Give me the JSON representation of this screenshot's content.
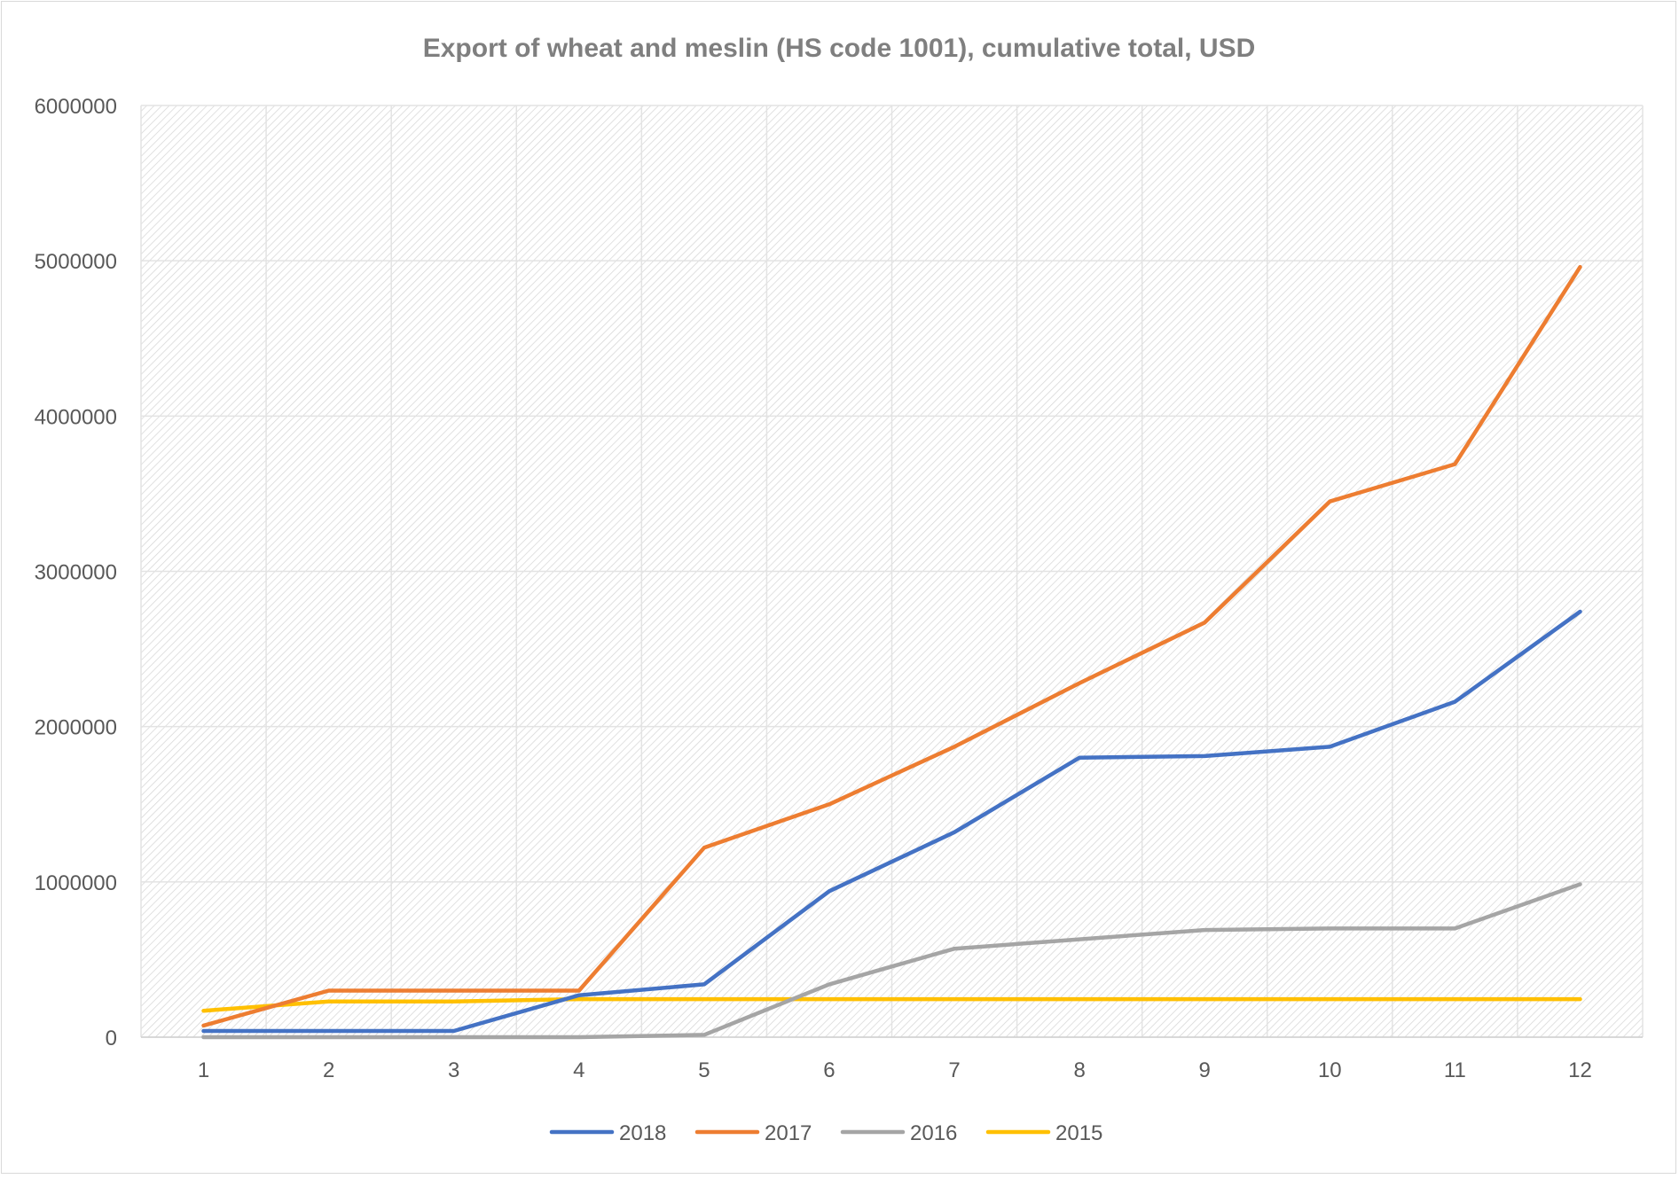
{
  "chart_data": {
    "type": "line",
    "title": "Export of wheat and meslin (HS code 1001), cumulative total, USD",
    "xlabel": "",
    "ylabel": "",
    "categories": [
      "1",
      "2",
      "3",
      "4",
      "5",
      "6",
      "7",
      "8",
      "9",
      "10",
      "11",
      "12"
    ],
    "ylim": [
      0,
      6000000
    ],
    "yticks": [
      "0",
      "1000000",
      "2000000",
      "3000000",
      "4000000",
      "5000000",
      "6000000"
    ],
    "grid": true,
    "legend_position": "bottom",
    "series": [
      {
        "name": "2018",
        "color": "#4472C4",
        "values": [
          40000,
          40000,
          40000,
          270000,
          340000,
          940000,
          1320000,
          1800000,
          1810000,
          1870000,
          2160000,
          2740000
        ]
      },
      {
        "name": "2017",
        "color": "#ED7D31",
        "values": [
          75000,
          300000,
          300000,
          300000,
          1220000,
          1500000,
          1870000,
          2280000,
          2670000,
          3450000,
          3690000,
          4960000
        ]
      },
      {
        "name": "2016",
        "color": "#A5A5A5",
        "values": [
          0,
          0,
          0,
          0,
          15000,
          340000,
          570000,
          630000,
          690000,
          700000,
          700000,
          985000
        ]
      },
      {
        "name": "2015",
        "color": "#FFC000",
        "values": [
          170000,
          230000,
          230000,
          245000,
          245000,
          245000,
          245000,
          245000,
          245000,
          245000,
          245000,
          245000
        ]
      }
    ]
  }
}
